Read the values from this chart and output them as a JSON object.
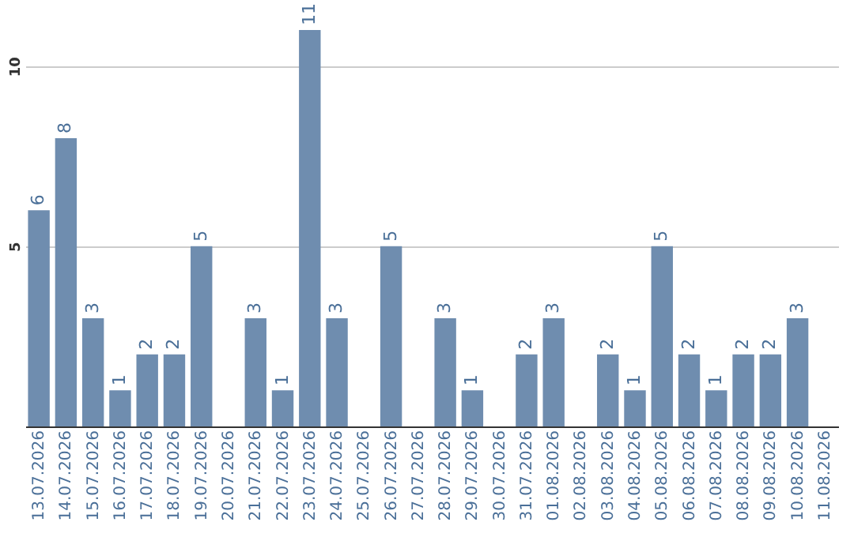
{
  "chart_data": {
    "type": "bar",
    "categories": [
      "13.07.2026",
      "14.07.2026",
      "15.07.2026",
      "16.07.2026",
      "17.07.2026",
      "18.07.2026",
      "19.07.2026",
      "20.07.2026",
      "21.07.2026",
      "22.07.2026",
      "23.07.2026",
      "24.07.2026",
      "25.07.2026",
      "26.07.2026",
      "27.07.2026",
      "28.07.2026",
      "29.07.2026",
      "30.07.2026",
      "31.07.2026",
      "01.08.2026",
      "02.08.2026",
      "03.08.2026",
      "04.08.2026",
      "05.08.2026",
      "06.08.2026",
      "07.08.2026",
      "08.08.2026",
      "09.08.2026",
      "10.08.2026",
      "11.08.2026"
    ],
    "values": [
      6,
      8,
      3,
      1,
      2,
      2,
      5,
      null,
      3,
      1,
      11,
      3,
      null,
      5,
      null,
      3,
      1,
      null,
      2,
      3,
      null,
      2,
      1,
      5,
      2,
      1,
      2,
      2,
      3,
      null
    ],
    "color": "#6f8daf",
    "ylim": [
      0,
      11
    ],
    "yticks": [
      5,
      10
    ],
    "grid": "y",
    "data_labels": true
  }
}
